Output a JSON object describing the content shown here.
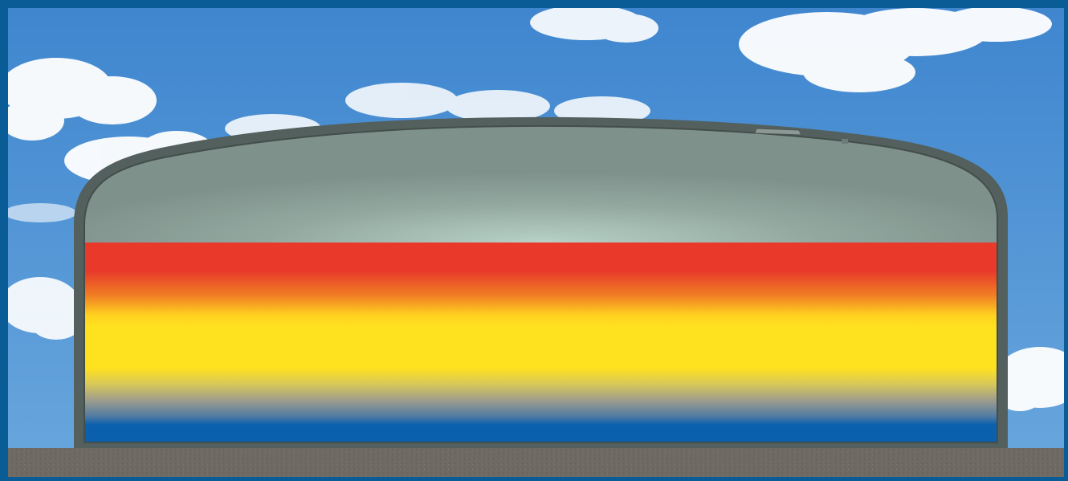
{
  "scene": {
    "subject": "thermal-storage-tank-cross-section",
    "colors": {
      "frame": "#0a5c96",
      "sky_top": "#3f86cf",
      "sky_bottom": "#6aa7dd",
      "cloud": "#ffffff",
      "ground": "#6e6a63",
      "tank_shell": "#53605d",
      "tank_headspace_center": "#b7d1c6",
      "tank_headspace_edge": "#7f918b",
      "layer_hot": "#e8392a",
      "layer_mid": "#f7a21b",
      "layer_warm": "#ffe21f",
      "layer_transition": "#a3a089",
      "layer_cold": "#0b60ad"
    },
    "temperature_layers": [
      {
        "name": "hot",
        "color": "#e8392a"
      },
      {
        "name": "warm",
        "color": "#ffe21f"
      },
      {
        "name": "cold",
        "color": "#0b60ad"
      }
    ],
    "icons": [
      "cloud-icon",
      "roof-vent-icon"
    ]
  }
}
